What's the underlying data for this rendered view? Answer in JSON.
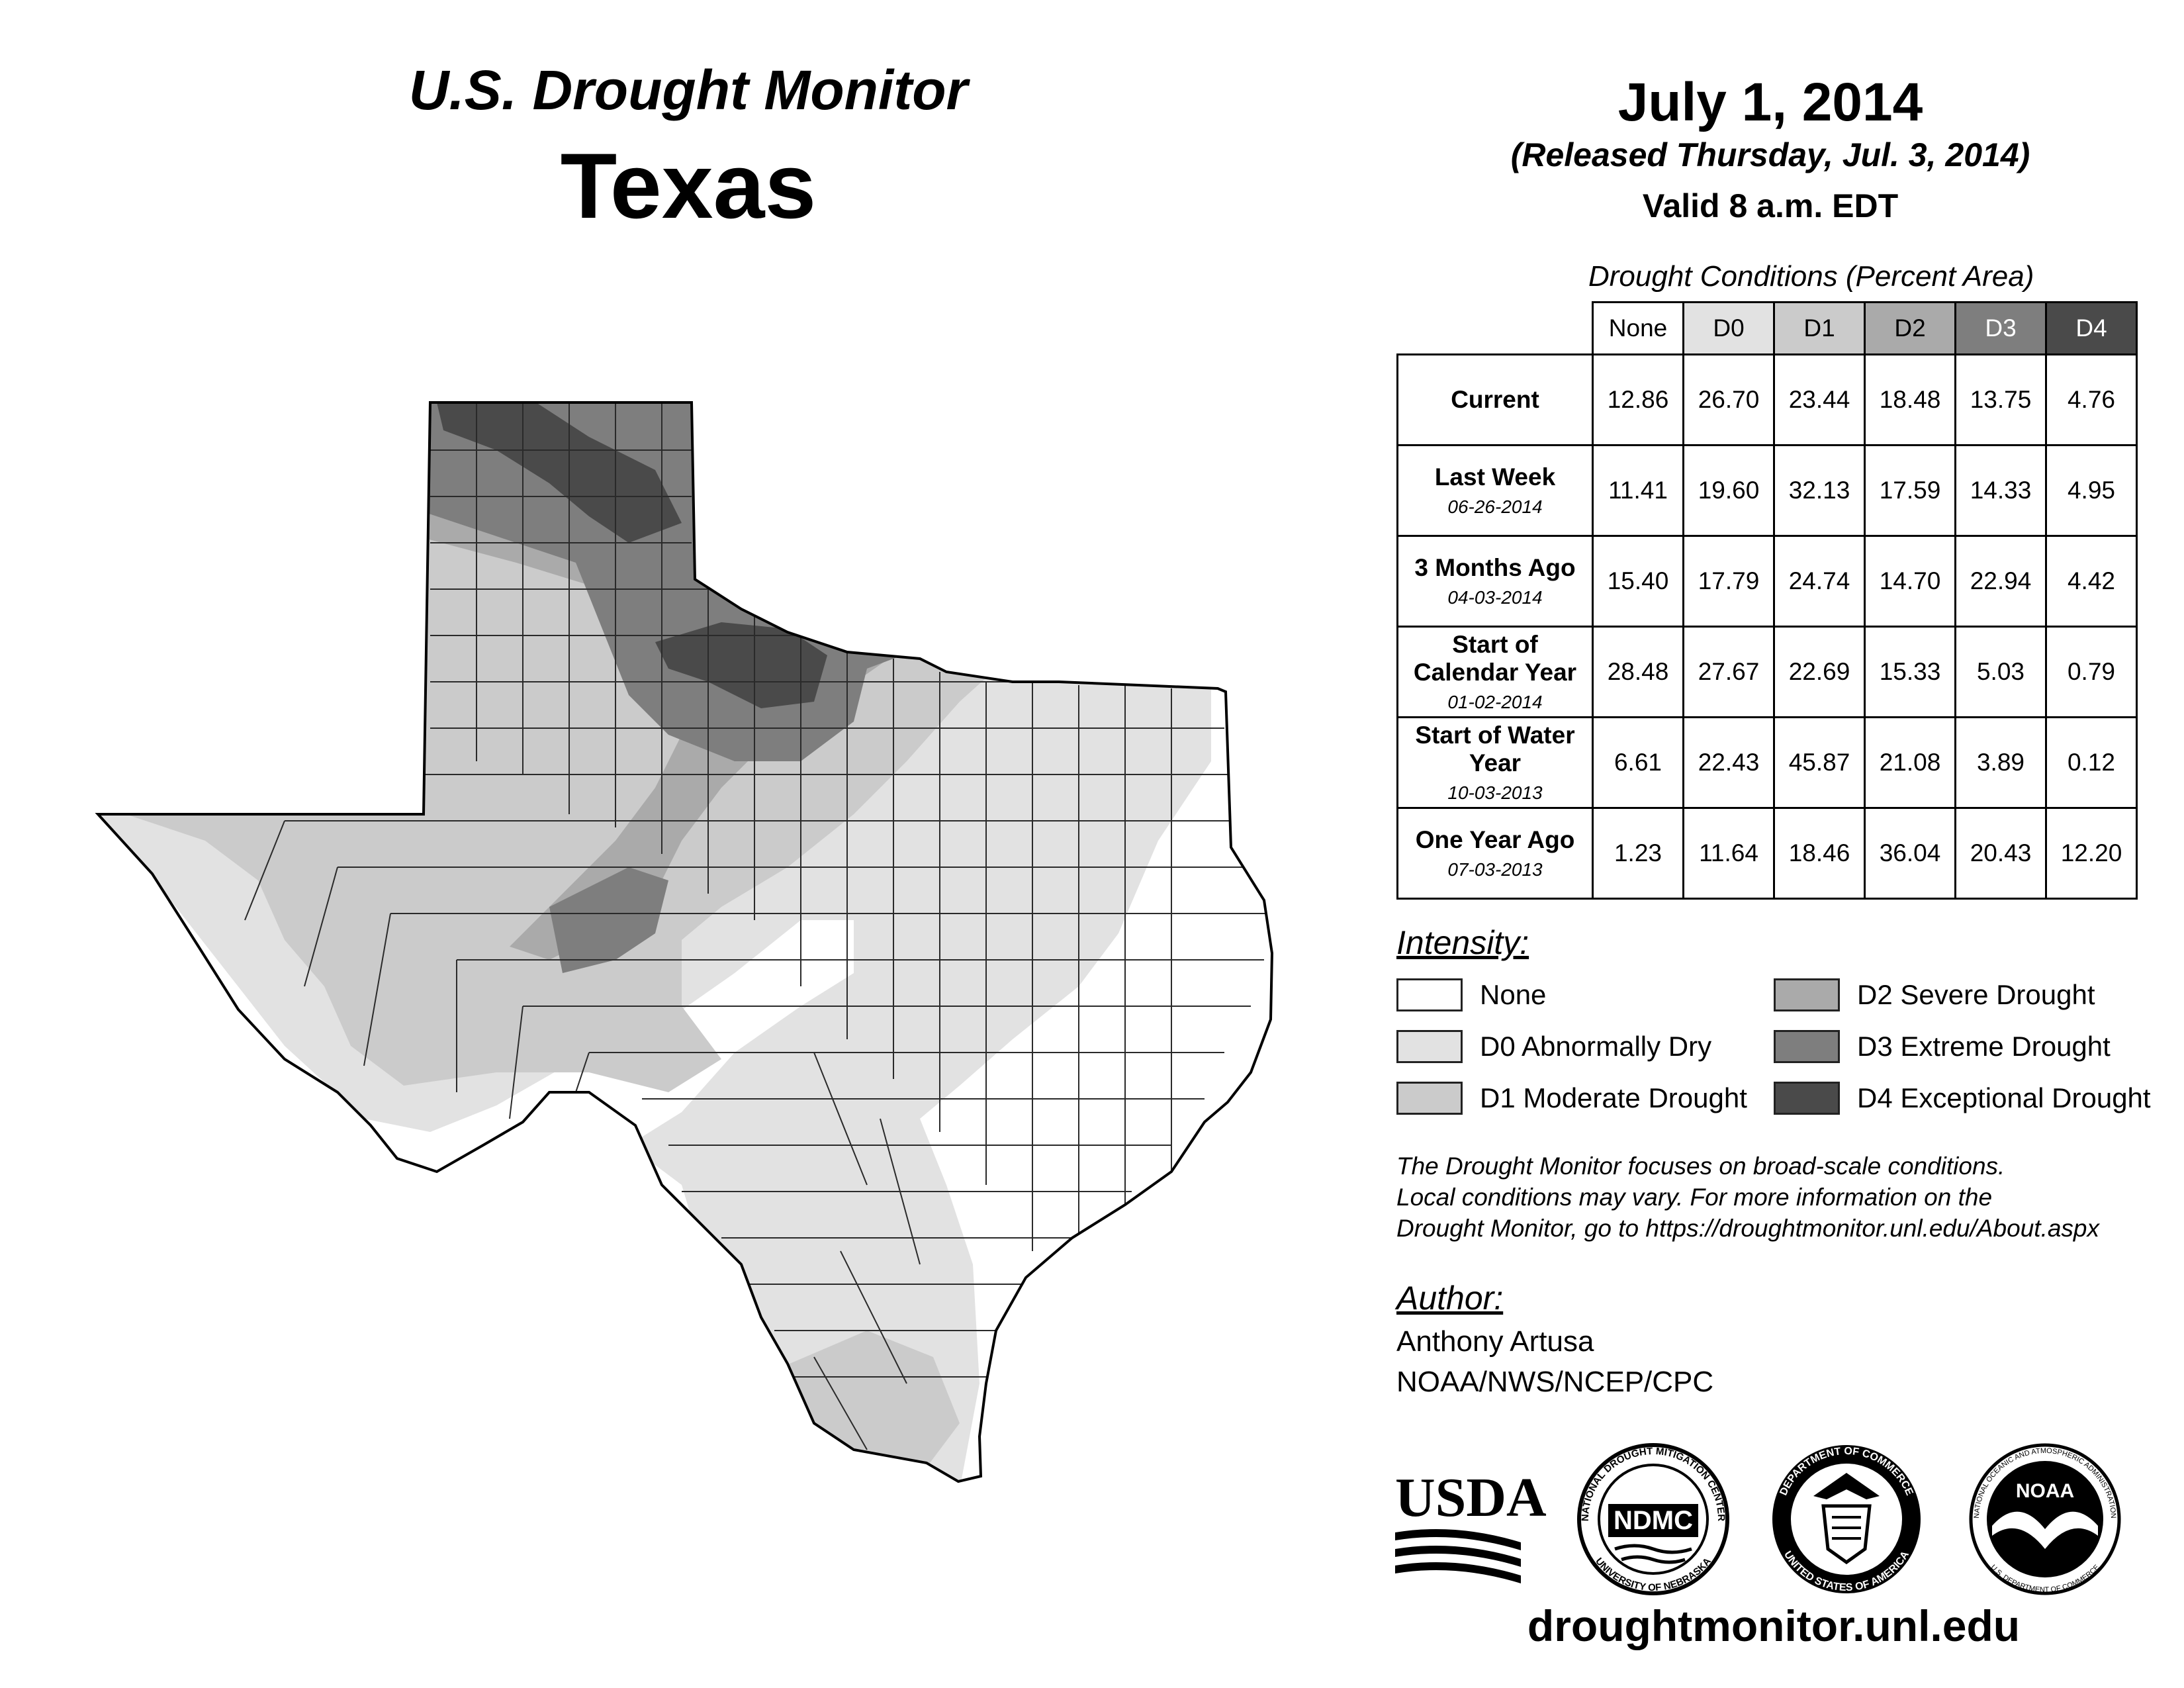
{
  "header": {
    "title": "U.S. Drought Monitor",
    "state": "Texas",
    "date": "July 1, 2014",
    "released": "(Released Thursday, Jul. 3, 2014)",
    "valid": "Valid 8 a.m. EDT"
  },
  "table": {
    "caption": "Drought Conditions (Percent Area)",
    "columns": [
      "None",
      "D0",
      "D1",
      "D2",
      "D3",
      "D4"
    ],
    "rows": [
      {
        "label": "Current",
        "date": "",
        "values": [
          "12.86",
          "26.70",
          "23.44",
          "18.48",
          "13.75",
          "4.76"
        ]
      },
      {
        "label": "Last Week",
        "date": "06-26-2014",
        "values": [
          "11.41",
          "19.60",
          "32.13",
          "17.59",
          "14.33",
          "4.95"
        ]
      },
      {
        "label": "3 Months Ago",
        "date": "04-03-2014",
        "values": [
          "15.40",
          "17.79",
          "24.74",
          "14.70",
          "22.94",
          "4.42"
        ]
      },
      {
        "label": "Start of Calendar Year",
        "date": "01-02-2014",
        "values": [
          "28.48",
          "27.67",
          "22.69",
          "15.33",
          "5.03",
          "0.79"
        ]
      },
      {
        "label": "Start of Water Year",
        "date": "10-03-2013",
        "values": [
          "6.61",
          "22.43",
          "45.87",
          "21.08",
          "3.89",
          "0.12"
        ]
      },
      {
        "label": "One Year Ago",
        "date": "07-03-2013",
        "values": [
          "1.23",
          "11.64",
          "18.46",
          "36.04",
          "20.43",
          "12.20"
        ]
      }
    ]
  },
  "legend": {
    "title": "Intensity:",
    "items": [
      {
        "label": "None",
        "color": "#ffffff"
      },
      {
        "label": "D0 Abnormally Dry",
        "color": "#e2e2e2"
      },
      {
        "label": "D1 Moderate Drought",
        "color": "#cbcbcb"
      },
      {
        "label": "D2 Severe Drought",
        "color": "#aaaaaa"
      },
      {
        "label": "D3 Extreme Drought",
        "color": "#7e7e7e"
      },
      {
        "label": "D4 Exceptional Drought",
        "color": "#4a4a4a"
      }
    ]
  },
  "note": {
    "line1": "The Drought Monitor focuses on broad-scale conditions.",
    "line2": "Local conditions may vary. For more information on the",
    "line3": "Drought Monitor, go to https://droughtmonitor.unl.edu/About.aspx"
  },
  "author": {
    "title": "Author:",
    "name": "Anthony Artusa",
    "org": "NOAA/NWS/NCEP/CPC"
  },
  "logos": {
    "usda": "USDA",
    "ndmc": "NDMC",
    "ndmc_ring_top": "NATIONAL DROUGHT MITIGATION CENTER",
    "ndmc_ring_bottom": "UNIVERSITY OF NEBRASKA",
    "commerce_ring_top": "DEPARTMENT OF COMMERCE",
    "commerce_ring_bottom": "UNITED STATES OF AMERICA",
    "noaa": "NOAA",
    "noaa_ring_top": "NATIONAL OCEANIC AND ATMOSPHERIC ADMINISTRATION",
    "noaa_ring_bottom": "U.S. DEPARTMENT OF COMMERCE"
  },
  "footer": {
    "url": "droughtmonitor.unl.edu"
  }
}
